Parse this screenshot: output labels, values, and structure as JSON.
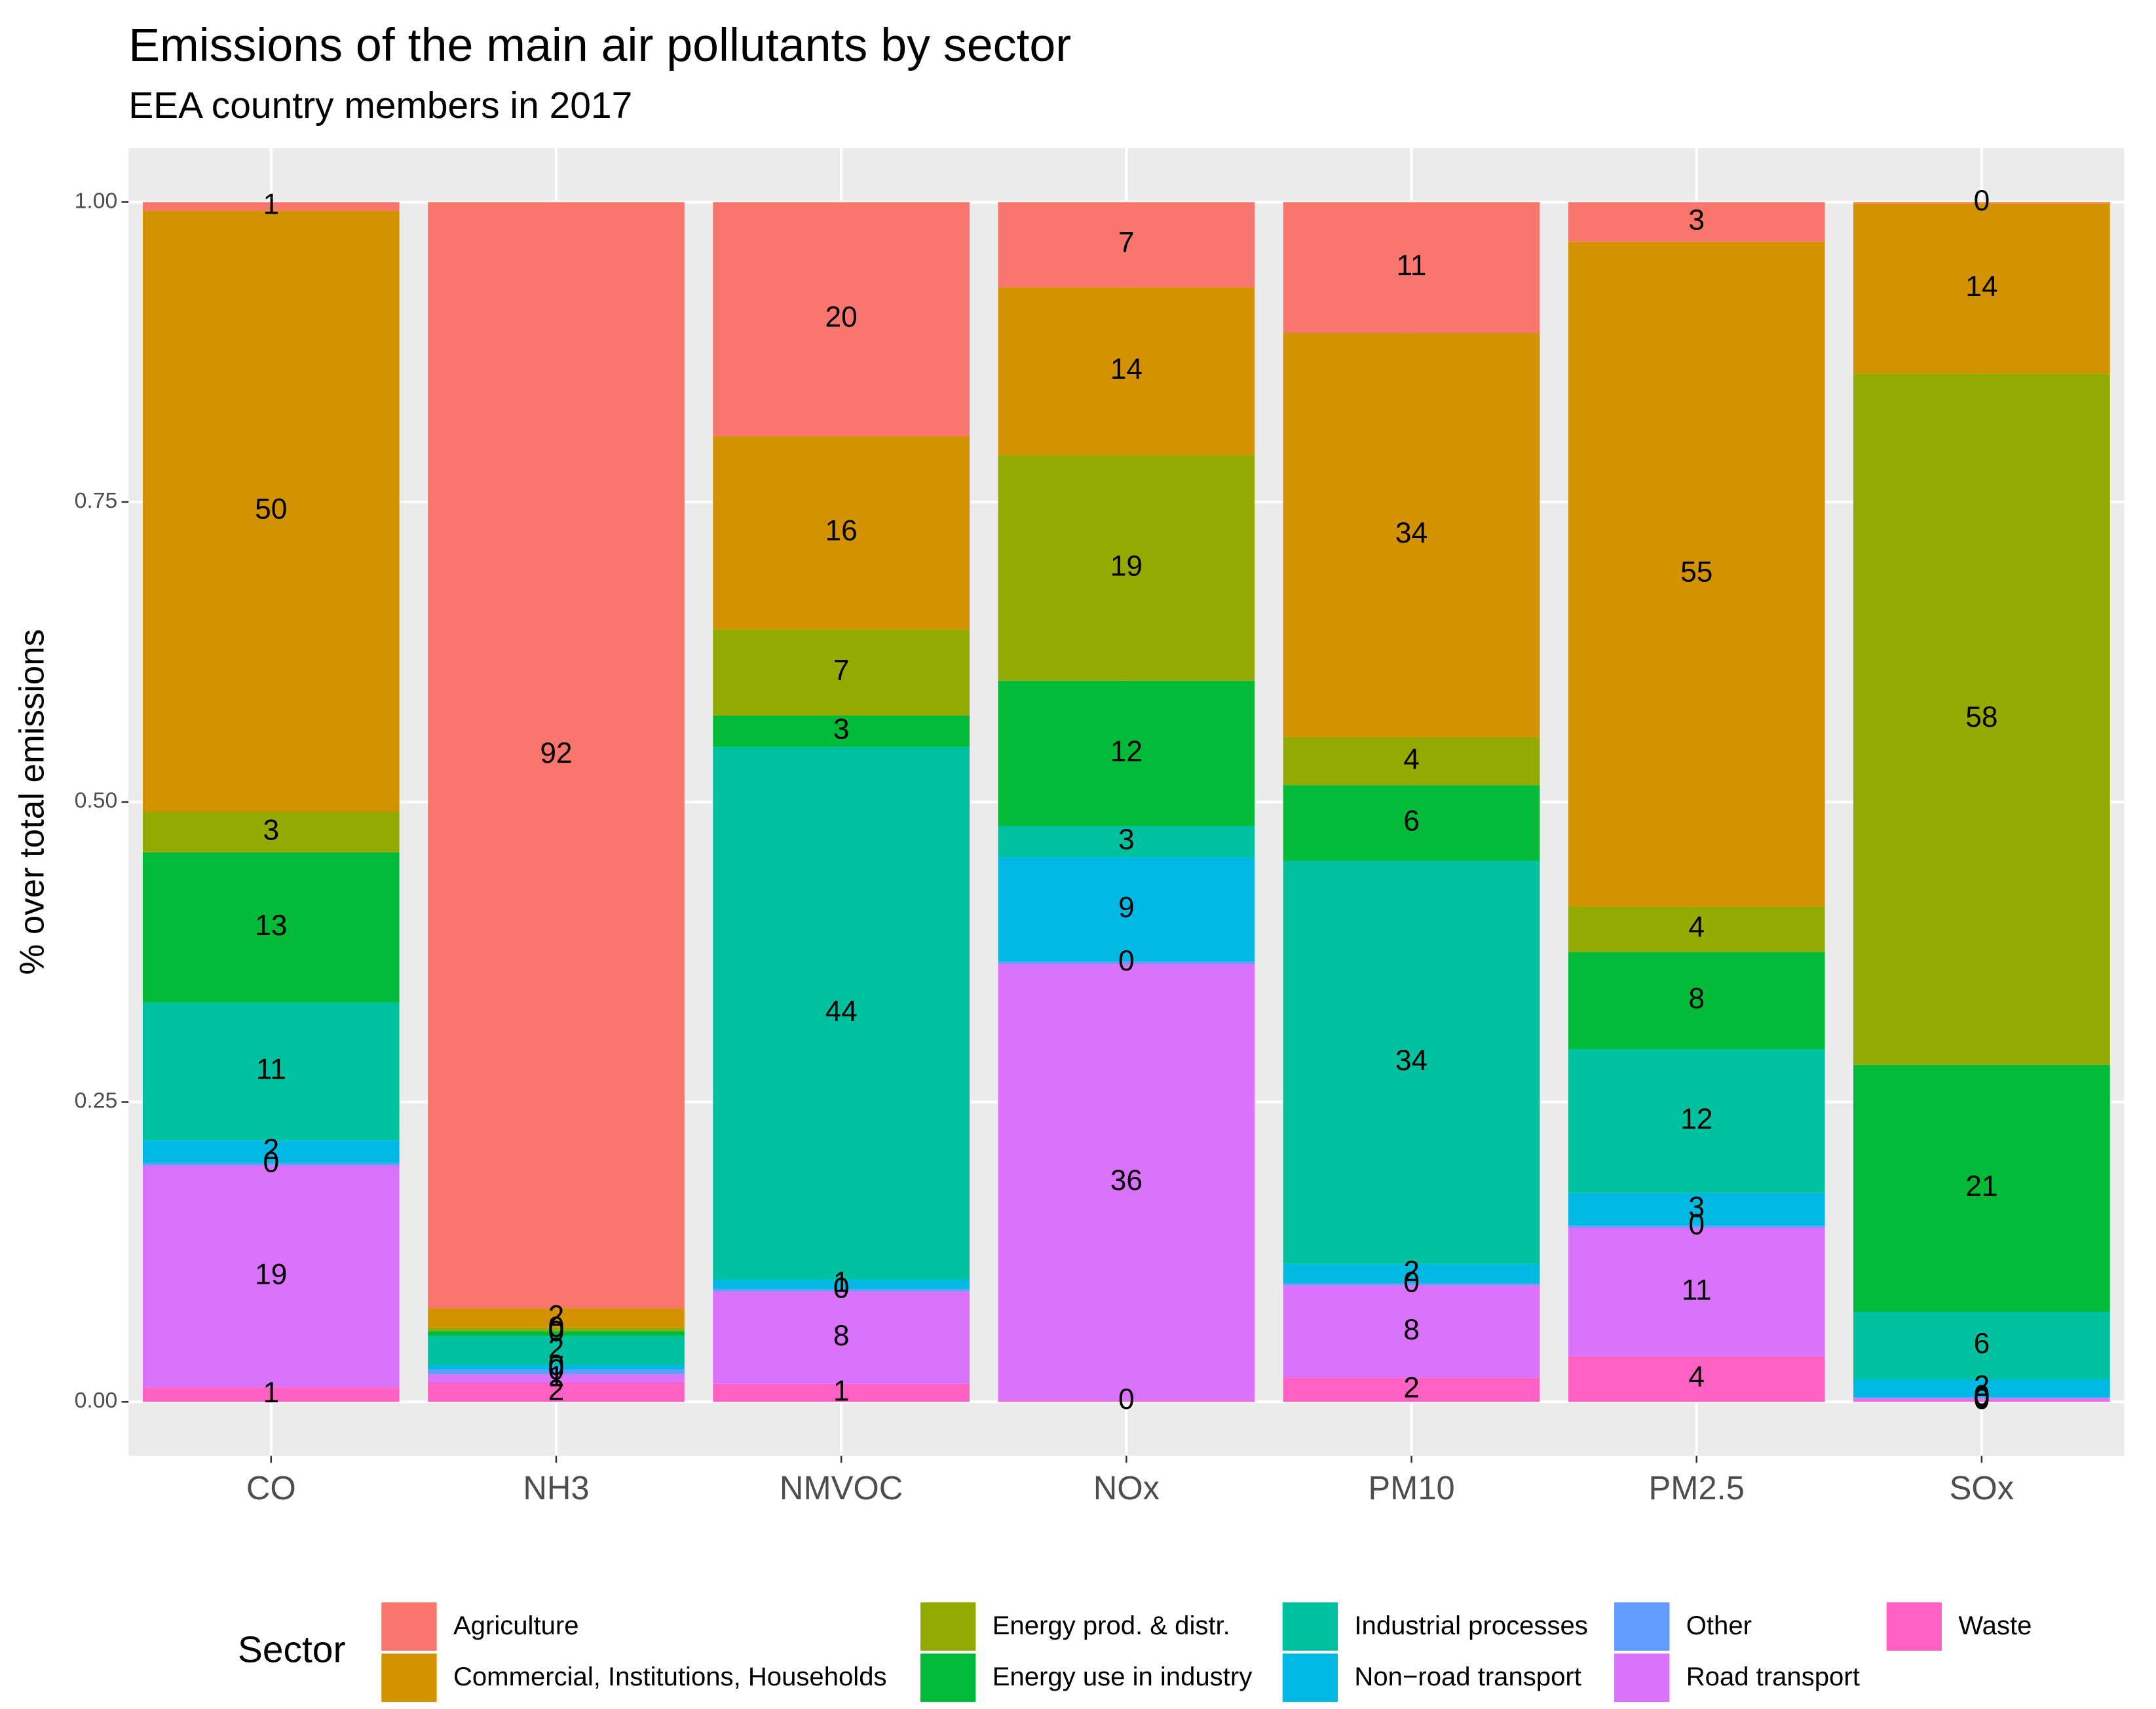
{
  "chart_data": {
    "type": "stacked_bar",
    "title": "Emissions of the main air pollutants by sector",
    "subtitle": "EEA country members in 2017",
    "y_label": "% over total emissions",
    "legend_title": "Sector",
    "categories": [
      "CO",
      "NH3",
      "NMVOC",
      "NOx",
      "PM10",
      "PM2.5",
      "SOx"
    ],
    "ylim": [
      -0.045,
      1.045
    ],
    "yticks": [
      {
        "value": 0,
        "label": "0.00"
      },
      {
        "value": 0.25,
        "label": "0.25"
      },
      {
        "value": 0.5,
        "label": "0.50"
      },
      {
        "value": 0.75,
        "label": "0.75"
      },
      {
        "value": 1,
        "label": "1.00"
      }
    ],
    "grid": true,
    "legend": "bottom",
    "series": [
      {
        "name": "Agriculture",
        "color": "#F8766D",
        "values": [
          0.007,
          0.922,
          0.195,
          0.071,
          0.109,
          0.033,
          0.001
        ],
        "value_labels": [
          "1",
          "92",
          "20",
          "7",
          "11",
          "3",
          "0"
        ]
      },
      {
        "name": "Commercial, Institutions, Households",
        "color": "#D39200",
        "values": [
          0.501,
          0.016,
          0.161,
          0.14,
          0.337,
          0.554,
          0.142
        ],
        "value_labels": [
          "50",
          "2",
          "16",
          "14",
          "34",
          "55",
          "14"
        ]
      },
      {
        "name": "Energy prod. & distr.",
        "color": "#93AA00",
        "values": [
          0.034,
          0.003,
          0.072,
          0.188,
          0.04,
          0.038,
          0.576
        ],
        "value_labels": [
          "3",
          "0",
          "7",
          "19",
          "4",
          "4",
          "58"
        ]
      },
      {
        "name": "Energy use in industry",
        "color": "#00BA38",
        "values": [
          0.125,
          0.004,
          0.026,
          0.121,
          0.063,
          0.081,
          0.206
        ],
        "value_labels": [
          "13",
          "0",
          "3",
          "12",
          "6",
          "8",
          "21"
        ]
      },
      {
        "name": "Industrial processes",
        "color": "#00C19F",
        "values": [
          0.115,
          0.024,
          0.444,
          0.026,
          0.336,
          0.12,
          0.056
        ],
        "value_labels": [
          "11",
          "2",
          "44",
          "3",
          "34",
          "12",
          "6"
        ]
      },
      {
        "name": "Non−road transport",
        "color": "#00B9E3",
        "values": [
          0.019,
          0.004,
          0.008,
          0.087,
          0.016,
          0.027,
          0.015
        ],
        "value_labels": [
          "2",
          "0",
          "1",
          "9",
          "2",
          "3",
          "2"
        ]
      },
      {
        "name": "Other",
        "color": "#619CFF",
        "values": [
          0.002,
          0.004,
          0.002,
          0.002,
          0.002,
          0.002,
          0.001
        ],
        "value_labels": [
          "0",
          "0",
          "0",
          "0",
          "0",
          "0",
          "0"
        ]
      },
      {
        "name": "Road transport",
        "color": "#DB72FB",
        "values": [
          0.185,
          0.007,
          0.077,
          0.364,
          0.077,
          0.107,
          0.002
        ],
        "value_labels": [
          "19",
          "1",
          "8",
          "36",
          "8",
          "11",
          "0"
        ]
      },
      {
        "name": "Waste",
        "color": "#FF61C3",
        "values": [
          0.012,
          0.016,
          0.015,
          0.001,
          0.02,
          0.038,
          0.001
        ],
        "value_labels": [
          "1",
          "2",
          "1",
          "0",
          "2",
          "4",
          "0"
        ]
      }
    ]
  }
}
